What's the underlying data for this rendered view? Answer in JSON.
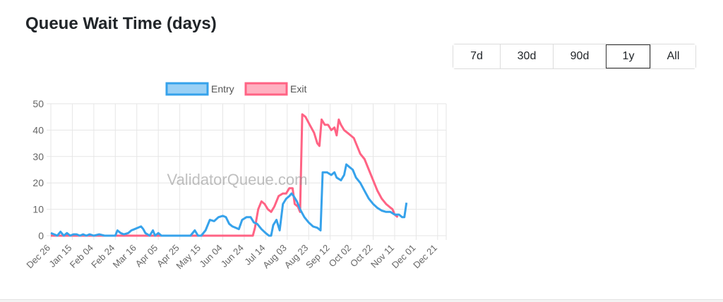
{
  "title": "Queue Wait Time (days)",
  "range_buttons": [
    {
      "label": "7d",
      "active": false
    },
    {
      "label": "30d",
      "active": false
    },
    {
      "label": "90d",
      "active": false
    },
    {
      "label": "1y",
      "active": true
    },
    {
      "label": "All",
      "active": false
    }
  ],
  "watermark": "ValidatorQueue.com",
  "colors": {
    "entry": "#36a2eb",
    "exit": "#ff6384",
    "grid": "#e6e6e6",
    "axis_text": "#666666"
  },
  "chart_data": {
    "type": "line",
    "title": "",
    "xlabel": "",
    "ylabel": "",
    "ylim": [
      0,
      50
    ],
    "y_ticks": [
      0,
      10,
      20,
      30,
      40,
      50
    ],
    "x_ticks": [
      "Dec 26",
      "Jan 15",
      "Feb 04",
      "Feb 24",
      "Mar 16",
      "Apr 05",
      "Apr 25",
      "May 15",
      "Jun 04",
      "Jun 24",
      "Jul 14",
      "Aug 03",
      "Aug 23",
      "Sep 12",
      "Oct 02",
      "Oct 22",
      "Nov 11",
      "Dec 01",
      "Dec 21"
    ],
    "x_range_days": [
      0,
      368
    ],
    "grid": true,
    "legend": "top",
    "series": [
      {
        "name": "Entry",
        "points": [
          [
            0,
            1
          ],
          [
            3,
            0.5
          ],
          [
            6,
            0
          ],
          [
            9,
            1.5
          ],
          [
            12,
            0
          ],
          [
            15,
            1
          ],
          [
            18,
            0
          ],
          [
            21,
            0.5
          ],
          [
            24,
            0.5
          ],
          [
            27,
            0
          ],
          [
            30,
            0.5
          ],
          [
            33,
            0
          ],
          [
            36,
            0.5
          ],
          [
            40,
            0
          ],
          [
            45,
            0.5
          ],
          [
            50,
            0
          ],
          [
            55,
            0
          ],
          [
            60,
            0
          ],
          [
            62,
            2
          ],
          [
            65,
            1
          ],
          [
            68,
            0.5
          ],
          [
            72,
            1
          ],
          [
            75,
            2
          ],
          [
            78,
            2.5
          ],
          [
            81,
            3
          ],
          [
            84,
            3.5
          ],
          [
            86,
            2.5
          ],
          [
            88,
            1
          ],
          [
            92,
            0
          ],
          [
            95,
            2
          ],
          [
            97,
            0
          ],
          [
            100,
            1
          ],
          [
            103,
            0
          ],
          [
            106,
            0
          ],
          [
            110,
            0
          ],
          [
            115,
            0
          ],
          [
            120,
            0
          ],
          [
            125,
            0
          ],
          [
            130,
            0
          ],
          [
            134,
            2
          ],
          [
            137,
            0
          ],
          [
            140,
            0
          ],
          [
            144,
            2
          ],
          [
            148,
            6
          ],
          [
            152,
            5.5
          ],
          [
            156,
            7
          ],
          [
            160,
            7.5
          ],
          [
            163,
            7
          ],
          [
            166,
            4.5
          ],
          [
            169,
            3.5
          ],
          [
            172,
            3
          ],
          [
            175,
            2.5
          ],
          [
            178,
            6
          ],
          [
            182,
            7
          ],
          [
            186,
            7
          ],
          [
            189,
            5
          ],
          [
            192,
            4.5
          ],
          [
            196,
            2.5
          ],
          [
            200,
            1
          ],
          [
            203,
            0
          ],
          [
            205,
            0
          ],
          [
            207,
            4
          ],
          [
            210,
            6
          ],
          [
            213,
            2
          ],
          [
            216,
            12
          ],
          [
            219,
            14
          ],
          [
            222,
            15
          ],
          [
            224,
            16
          ],
          [
            226,
            15
          ],
          [
            229,
            13
          ],
          [
            232,
            10
          ],
          [
            236,
            7
          ],
          [
            240,
            5
          ],
          [
            244,
            3.5
          ],
          [
            248,
            3
          ],
          [
            251,
            2
          ],
          [
            253,
            24
          ],
          [
            257,
            24
          ],
          [
            261,
            23
          ],
          [
            264,
            24
          ],
          [
            266,
            22
          ],
          [
            270,
            21
          ],
          [
            273,
            23
          ],
          [
            275,
            27
          ],
          [
            278,
            26
          ],
          [
            281,
            25
          ],
          [
            284,
            22
          ],
          [
            288,
            20
          ],
          [
            292,
            17
          ],
          [
            296,
            14
          ],
          [
            300,
            12
          ],
          [
            304,
            10.5
          ],
          [
            308,
            9.5
          ],
          [
            312,
            9
          ],
          [
            316,
            9
          ],
          [
            320,
            8
          ],
          [
            324,
            8
          ],
          [
            327,
            7
          ],
          [
            329,
            7
          ],
          [
            331,
            12.5
          ]
        ]
      },
      {
        "name": "Exit",
        "points": [
          [
            0,
            0
          ],
          [
            15,
            0
          ],
          [
            40,
            0
          ],
          [
            70,
            0
          ],
          [
            100,
            0
          ],
          [
            130,
            0
          ],
          [
            160,
            0
          ],
          [
            170,
            0
          ],
          [
            178,
            0
          ],
          [
            182,
            0
          ],
          [
            185,
            0
          ],
          [
            188,
            0
          ],
          [
            190,
            3
          ],
          [
            193,
            10
          ],
          [
            196,
            13
          ],
          [
            199,
            12
          ],
          [
            202,
            10
          ],
          [
            205,
            9
          ],
          [
            208,
            11
          ],
          [
            212,
            15
          ],
          [
            216,
            16
          ],
          [
            219,
            16
          ],
          [
            222,
            18
          ],
          [
            225,
            18
          ],
          [
            227,
            12
          ],
          [
            230,
            11
          ],
          [
            232,
            9
          ],
          [
            234,
            46
          ],
          [
            237,
            45
          ],
          [
            241,
            42
          ],
          [
            245,
            39
          ],
          [
            248,
            35
          ],
          [
            250,
            34
          ],
          [
            252,
            44
          ],
          [
            255,
            42
          ],
          [
            258,
            42
          ],
          [
            261,
            40
          ],
          [
            264,
            41
          ],
          [
            266,
            38
          ],
          [
            268,
            44
          ],
          [
            270,
            42
          ],
          [
            273,
            40
          ],
          [
            276,
            39
          ],
          [
            279,
            38
          ],
          [
            282,
            37
          ],
          [
            285,
            34
          ],
          [
            288,
            31
          ],
          [
            292,
            29
          ],
          [
            296,
            25
          ],
          [
            300,
            21
          ],
          [
            304,
            17
          ],
          [
            308,
            14
          ],
          [
            312,
            12
          ],
          [
            315,
            11
          ],
          [
            318,
            10
          ],
          [
            320,
            8
          ],
          [
            323,
            7
          ]
        ]
      }
    ]
  }
}
